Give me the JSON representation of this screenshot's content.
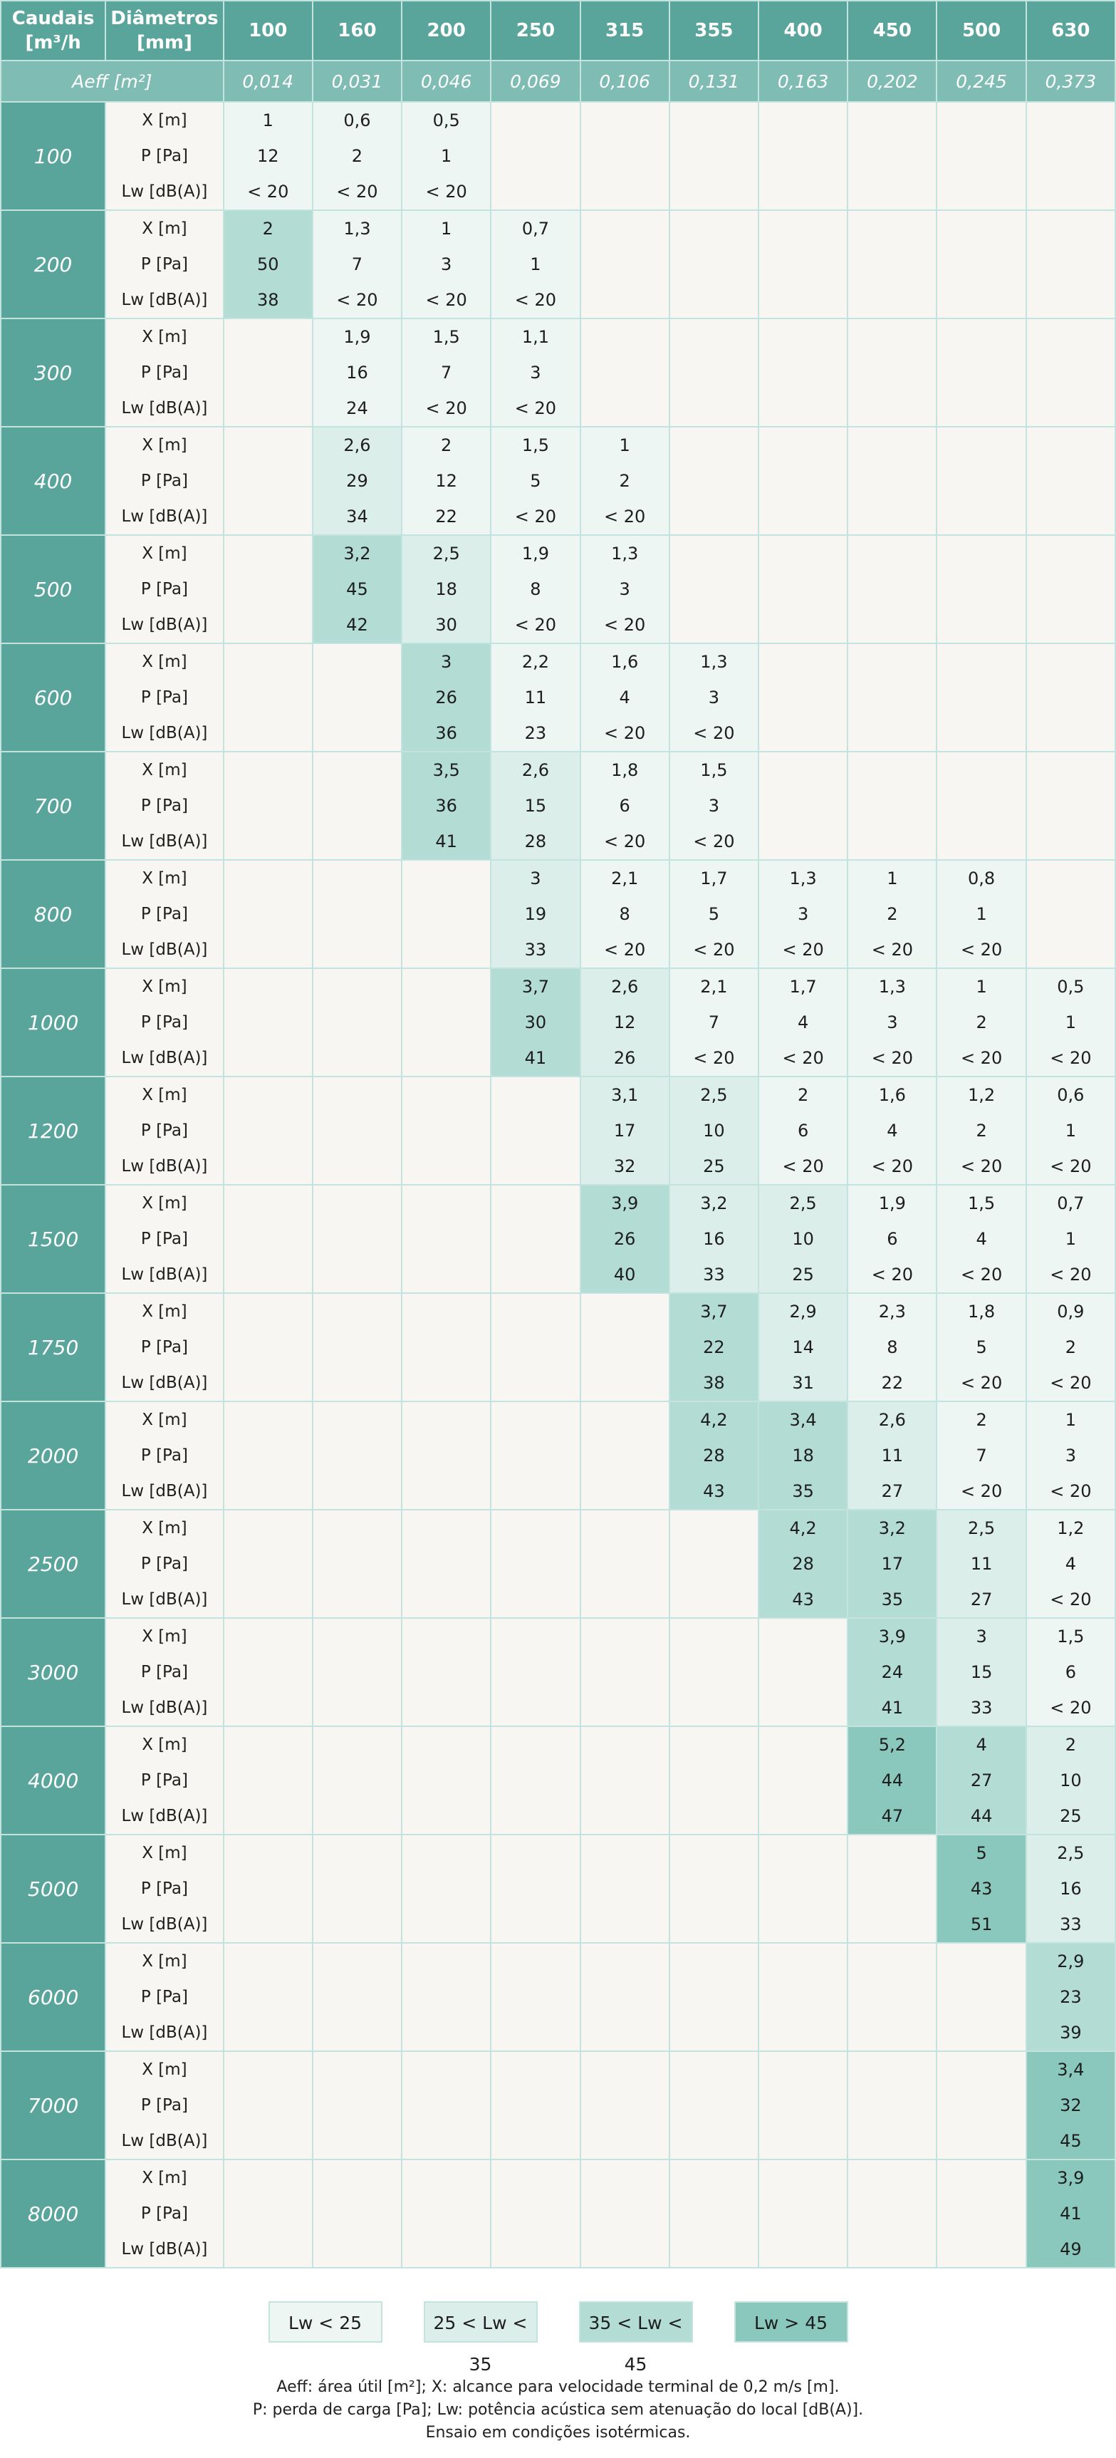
{
  "header": {
    "caudais_line1": "Caudais",
    "caudais_line2": "[m³/h",
    "diametros_line1": "Diâmetros",
    "diametros_line2": "[mm]",
    "aeff_label": "Aeff [m²]"
  },
  "diameters": [
    "100",
    "160",
    "200",
    "250",
    "315",
    "355",
    "400",
    "450",
    "500",
    "630"
  ],
  "aeff": [
    "0,014",
    "0,031",
    "0,046",
    "0,069",
    "0,106",
    "0,131",
    "0,163",
    "0,202",
    "0,245",
    "0,373"
  ],
  "row_labels": [
    "X [m]",
    "P [Pa]",
    "Lw [dB(A)]"
  ],
  "rows": [
    {
      "flow": "100",
      "cells": [
        [
          "1",
          "12",
          "< 20"
        ],
        [
          "0,6",
          "2",
          "< 20"
        ],
        [
          "0,5",
          "1",
          "< 20"
        ],
        null,
        null,
        null,
        null,
        null,
        null,
        null
      ]
    },
    {
      "flow": "200",
      "cells": [
        [
          "2",
          "50",
          "38"
        ],
        [
          "1,3",
          "7",
          "< 20"
        ],
        [
          "1",
          "3",
          "< 20"
        ],
        [
          "0,7",
          "1",
          "< 20"
        ],
        null,
        null,
        null,
        null,
        null,
        null
      ]
    },
    {
      "flow": "300",
      "cells": [
        null,
        [
          "1,9",
          "16",
          "24"
        ],
        [
          "1,5",
          "7",
          "< 20"
        ],
        [
          "1,1",
          "3",
          "< 20"
        ],
        null,
        null,
        null,
        null,
        null,
        null
      ]
    },
    {
      "flow": "400",
      "cells": [
        null,
        [
          "2,6",
          "29",
          "34"
        ],
        [
          "2",
          "12",
          "22"
        ],
        [
          "1,5",
          "5",
          "< 20"
        ],
        [
          "1",
          "2",
          "< 20"
        ],
        null,
        null,
        null,
        null,
        null
      ]
    },
    {
      "flow": "500",
      "cells": [
        null,
        [
          "3,2",
          "45",
          "42"
        ],
        [
          "2,5",
          "18",
          "30"
        ],
        [
          "1,9",
          "8",
          "< 20"
        ],
        [
          "1,3",
          "3",
          "< 20"
        ],
        null,
        null,
        null,
        null,
        null
      ]
    },
    {
      "flow": "600",
      "cells": [
        null,
        null,
        [
          "3",
          "26",
          "36"
        ],
        [
          "2,2",
          "11",
          "23"
        ],
        [
          "1,6",
          "4",
          "< 20"
        ],
        [
          "1,3",
          "3",
          "< 20"
        ],
        null,
        null,
        null,
        null
      ]
    },
    {
      "flow": "700",
      "cells": [
        null,
        null,
        [
          "3,5",
          "36",
          "41"
        ],
        [
          "2,6",
          "15",
          "28"
        ],
        [
          "1,8",
          "6",
          "< 20"
        ],
        [
          "1,5",
          "3",
          "< 20"
        ],
        null,
        null,
        null,
        null
      ]
    },
    {
      "flow": "800",
      "cells": [
        null,
        null,
        null,
        [
          "3",
          "19",
          "33"
        ],
        [
          "2,1",
          "8",
          "< 20"
        ],
        [
          "1,7",
          "5",
          "< 20"
        ],
        [
          "1,3",
          "3",
          "< 20"
        ],
        [
          "1",
          "2",
          "< 20"
        ],
        [
          "0,8",
          "1",
          "< 20"
        ],
        null
      ]
    },
    {
      "flow": "1000",
      "cells": [
        null,
        null,
        null,
        [
          "3,7",
          "30",
          "41"
        ],
        [
          "2,6",
          "12",
          "26"
        ],
        [
          "2,1",
          "7",
          "< 20"
        ],
        [
          "1,7",
          "4",
          "< 20"
        ],
        [
          "1,3",
          "3",
          "< 20"
        ],
        [
          "1",
          "2",
          "< 20"
        ],
        [
          "0,5",
          "1",
          "< 20"
        ]
      ]
    },
    {
      "flow": "1200",
      "cells": [
        null,
        null,
        null,
        null,
        [
          "3,1",
          "17",
          "32"
        ],
        [
          "2,5",
          "10",
          "25"
        ],
        [
          "2",
          "6",
          "< 20"
        ],
        [
          "1,6",
          "4",
          "< 20"
        ],
        [
          "1,2",
          "2",
          "< 20"
        ],
        [
          "0,6",
          "1",
          "< 20"
        ]
      ]
    },
    {
      "flow": "1500",
      "cells": [
        null,
        null,
        null,
        null,
        [
          "3,9",
          "26",
          "40"
        ],
        [
          "3,2",
          "16",
          "33"
        ],
        [
          "2,5",
          "10",
          "25"
        ],
        [
          "1,9",
          "6",
          "< 20"
        ],
        [
          "1,5",
          "4",
          "< 20"
        ],
        [
          "0,7",
          "1",
          "< 20"
        ]
      ]
    },
    {
      "flow": "1750",
      "cells": [
        null,
        null,
        null,
        null,
        null,
        [
          "3,7",
          "22",
          "38"
        ],
        [
          "2,9",
          "14",
          "31"
        ],
        [
          "2,3",
          "8",
          "22"
        ],
        [
          "1,8",
          "5",
          "< 20"
        ],
        [
          "0,9",
          "2",
          "< 20"
        ]
      ]
    },
    {
      "flow": "2000",
      "cells": [
        null,
        null,
        null,
        null,
        null,
        [
          "4,2",
          "28",
          "43"
        ],
        [
          "3,4",
          "18",
          "35"
        ],
        [
          "2,6",
          "11",
          "27"
        ],
        [
          "2",
          "7",
          "< 20"
        ],
        [
          "1",
          "3",
          "< 20"
        ]
      ]
    },
    {
      "flow": "2500",
      "cells": [
        null,
        null,
        null,
        null,
        null,
        null,
        [
          "4,2",
          "28",
          "43"
        ],
        [
          "3,2",
          "17",
          "35"
        ],
        [
          "2,5",
          "11",
          "27"
        ],
        [
          "1,2",
          "4",
          "< 20"
        ]
      ]
    },
    {
      "flow": "3000",
      "cells": [
        null,
        null,
        null,
        null,
        null,
        null,
        null,
        [
          "3,9",
          "24",
          "41"
        ],
        [
          "3",
          "15",
          "33"
        ],
        [
          "1,5",
          "6",
          "< 20"
        ]
      ]
    },
    {
      "flow": "4000",
      "cells": [
        null,
        null,
        null,
        null,
        null,
        null,
        null,
        [
          "5,2",
          "44",
          "47"
        ],
        [
          "4",
          "27",
          "44"
        ],
        [
          "2",
          "10",
          "25"
        ]
      ]
    },
    {
      "flow": "5000",
      "cells": [
        null,
        null,
        null,
        null,
        null,
        null,
        null,
        null,
        [
          "5",
          "43",
          "51"
        ],
        [
          "2,5",
          "16",
          "33"
        ]
      ]
    },
    {
      "flow": "6000",
      "cells": [
        null,
        null,
        null,
        null,
        null,
        null,
        null,
        null,
        null,
        [
          "2,9",
          "23",
          "39"
        ]
      ]
    },
    {
      "flow": "7000",
      "cells": [
        null,
        null,
        null,
        null,
        null,
        null,
        null,
        null,
        null,
        [
          "3,4",
          "32",
          "45"
        ]
      ]
    },
    {
      "flow": "8000",
      "cells": [
        null,
        null,
        null,
        null,
        null,
        null,
        null,
        null,
        null,
        [
          "3,9",
          "41",
          "49"
        ]
      ]
    }
  ],
  "legend": [
    "Lw < 25",
    "25 < Lw < 35",
    "35 < Lw < 45",
    "Lw > 45"
  ],
  "colors": {
    "band0": "#eef6f4",
    "band1": "#dbeeea",
    "band2": "#b3dcd4",
    "band3": "#8ac8bd",
    "header": "#5aa59b",
    "aeff_row": "#7fbcb3",
    "empty": "#f8f6f3"
  },
  "notes": [
    "Aeff: área útil [m²]; X: alcance para velocidade terminal de 0,2 m/s [m].",
    "P: perda de carga [Pa]; Lw: potência acústica sem atenuação do local [dB(A)].",
    "Ensaio em condições isotérmicas."
  ]
}
